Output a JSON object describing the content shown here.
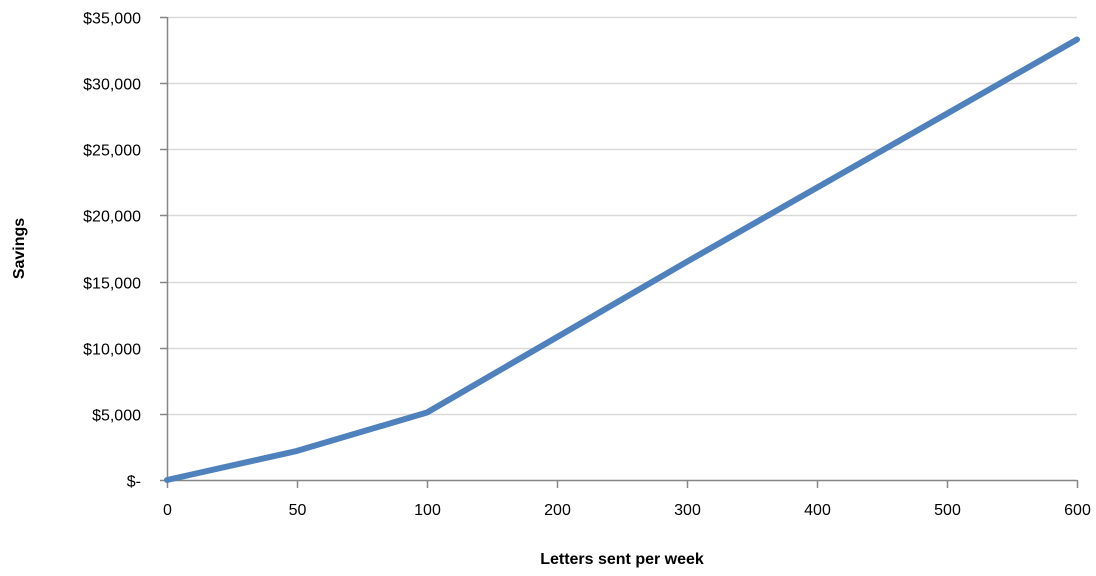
{
  "chart_data": {
    "type": "line",
    "title": "",
    "xlabel": "Letters sent per week",
    "ylabel": "Savings",
    "categories": [
      "0",
      "50",
      "100",
      "200",
      "300",
      "400",
      "500",
      "600"
    ],
    "series": [
      {
        "values": [
          0,
          2200,
          5100,
          10800,
          16500,
          22100,
          27700,
          33300
        ]
      }
    ],
    "ylim": [
      0,
      35000
    ],
    "yticks": [
      0,
      5000,
      10000,
      15000,
      20000,
      25000,
      30000,
      35000
    ],
    "ytick_labels": [
      "$-",
      "$5,000",
      "$10,000",
      "$15,000",
      "$20,000",
      "$25,000",
      "$30,000",
      "$35,000"
    ],
    "grid": true,
    "legend": "none",
    "line_color": "#4f81bd",
    "grid_color": "#d9d9d9",
    "axis_color": "#868686"
  }
}
